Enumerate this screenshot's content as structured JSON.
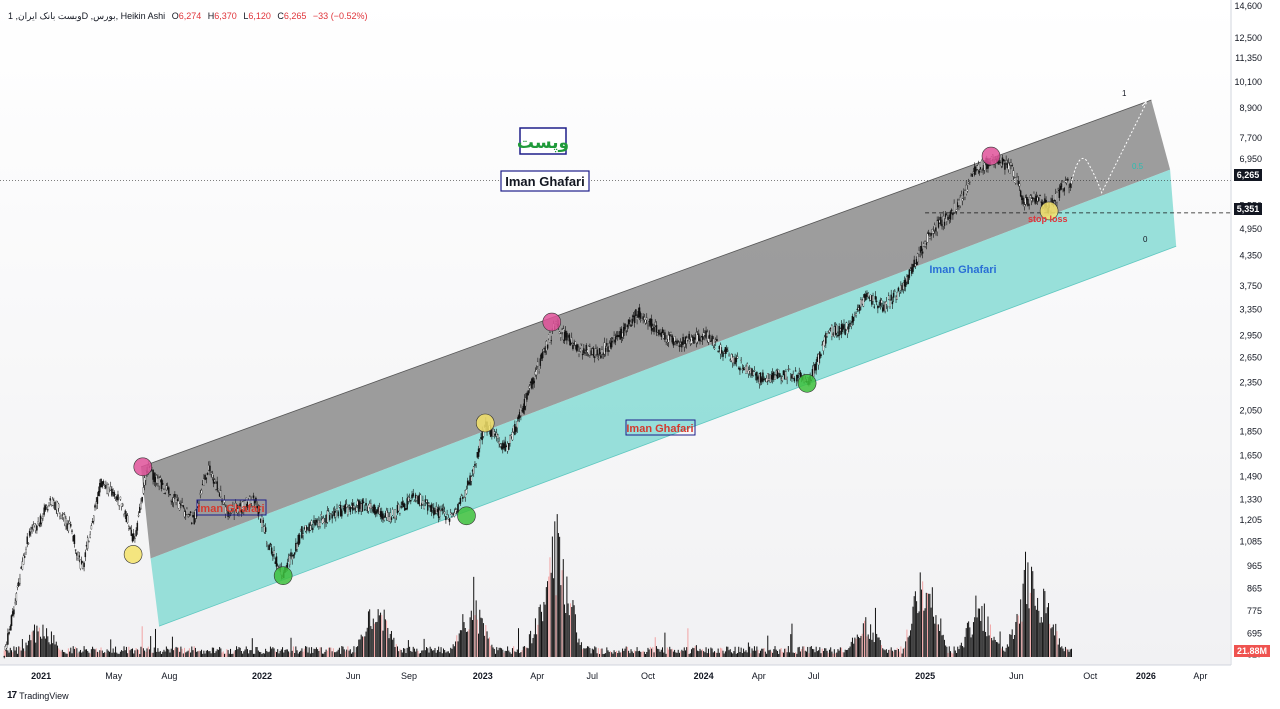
{
  "header": {
    "symbol_text": "1 ,وبست بانک ایرانD ,بورس",
    "chart_style": "Heikin Ashi",
    "open_label": "O",
    "open_value": "6,274",
    "high_label": "H",
    "high_value": "6,370",
    "low_label": "L",
    "low_value": "6,120",
    "close_label": "C",
    "close_value": "6,265",
    "change": "−33 (−0.52%)"
  },
  "branding": {
    "logo_text": "TradingView",
    "logo_mark": "17"
  },
  "colors": {
    "upper_channel": "#8c8c8c",
    "lower_channel": "#7fd9d2",
    "candles": "#111111",
    "volume": "#111111",
    "volume_alt": "#f2a4a4",
    "magenta_marker": "#e0529a",
    "yellow_marker": "#f3e26a",
    "green_marker": "#3cbf3c",
    "stop_loss": "#e0343a",
    "watermark_blue": "#2a6fd6",
    "fib_label": "#2bbdb2"
  },
  "annotations": {
    "title_persian": "وپست",
    "author_box": "Iman Ghafari",
    "author_mid": "Iman Ghafari",
    "author_blue": "Iman Ghafari",
    "author_left": "Iman Ghafari",
    "stop_loss": "stop loss",
    "fib_1": "1",
    "fib_05": "0.5",
    "fib_0": "0"
  },
  "price_axis": {
    "current_price": "6,265",
    "stop_level": "5,351",
    "volume_label": "21.88M"
  },
  "chart_data": {
    "type": "candlestick",
    "scale": "log",
    "grid": false,
    "title": "",
    "ylim": [
      620,
      14600
    ],
    "y_ticks": [
      14600,
      12500,
      11350,
      10100,
      8900,
      7700,
      6950,
      5550,
      4950,
      4350,
      3750,
      3350,
      2950,
      2650,
      2350,
      2050,
      1850,
      1650,
      1490,
      1330,
      1205,
      1085,
      965,
      865,
      775,
      695,
      627
    ],
    "y_tick_labels": [
      "14,600",
      "12,500",
      "11,350",
      "10,100",
      "8,900",
      "7,700",
      "6,950",
      "5,550",
      "4,950",
      "4,350",
      "3,750",
      "3,350",
      "2,950",
      "2,650",
      "2,350",
      "2,050",
      "1,850",
      "1,650",
      "1,490",
      "1,330",
      "1,205",
      "1,085",
      "965",
      "865",
      "775",
      "695",
      "627"
    ],
    "x_tick_labels": [
      "2021",
      "May",
      "Aug",
      "2022",
      "Jun",
      "Sep",
      "2023",
      "Apr",
      "Jul",
      "Oct",
      "2024",
      "Apr",
      "Jul",
      "2025",
      "Jun",
      "Oct",
      "2026",
      "Apr"
    ],
    "x_tick_dates": [
      "2021-01-01",
      "2021-05-01",
      "2021-08-01",
      "2022-01-01",
      "2022-06-01",
      "2022-09-01",
      "2023-01-01",
      "2023-04-01",
      "2023-07-01",
      "2023-10-01",
      "2024-01-01",
      "2024-04-01",
      "2024-07-01",
      "2025-01-01",
      "2025-06-01",
      "2025-10-01",
      "2026-01-01",
      "2026-04-01"
    ],
    "price_path": [
      {
        "date": "2020-11-01",
        "price": 620
      },
      {
        "date": "2020-12-10",
        "price": 1100
      },
      {
        "date": "2021-01-20",
        "price": 1330
      },
      {
        "date": "2021-02-20",
        "price": 1150
      },
      {
        "date": "2021-03-10",
        "price": 950
      },
      {
        "date": "2021-04-10",
        "price": 1450
      },
      {
        "date": "2021-05-15",
        "price": 1300
      },
      {
        "date": "2021-06-05",
        "price": 1080
      },
      {
        "date": "2021-06-25",
        "price": 1560
      },
      {
        "date": "2021-08-05",
        "price": 1350
      },
      {
        "date": "2021-09-10",
        "price": 1200
      },
      {
        "date": "2021-10-05",
        "price": 1560
      },
      {
        "date": "2021-11-05",
        "price": 1250
      },
      {
        "date": "2021-12-20",
        "price": 1330
      },
      {
        "date": "2022-01-15",
        "price": 1050
      },
      {
        "date": "2022-02-05",
        "price": 930
      },
      {
        "date": "2022-03-10",
        "price": 1150
      },
      {
        "date": "2022-05-01",
        "price": 1250
      },
      {
        "date": "2022-06-20",
        "price": 1300
      },
      {
        "date": "2022-08-01",
        "price": 1220
      },
      {
        "date": "2022-09-10",
        "price": 1350
      },
      {
        "date": "2022-10-20",
        "price": 1250
      },
      {
        "date": "2022-11-15",
        "price": 1220
      },
      {
        "date": "2022-12-15",
        "price": 1500
      },
      {
        "date": "2023-01-05",
        "price": 1920
      },
      {
        "date": "2023-02-10",
        "price": 1700
      },
      {
        "date": "2023-03-10",
        "price": 2100
      },
      {
        "date": "2023-04-10",
        "price": 2700
      },
      {
        "date": "2023-05-01",
        "price": 3100
      },
      {
        "date": "2023-06-01",
        "price": 2800
      },
      {
        "date": "2023-07-10",
        "price": 2700
      },
      {
        "date": "2023-08-10",
        "price": 2900
      },
      {
        "date": "2023-09-15",
        "price": 3300
      },
      {
        "date": "2023-10-20",
        "price": 3000
      },
      {
        "date": "2023-11-20",
        "price": 2850
      },
      {
        "date": "2024-01-05",
        "price": 2950
      },
      {
        "date": "2024-02-15",
        "price": 2650
      },
      {
        "date": "2024-04-01",
        "price": 2400
      },
      {
        "date": "2024-05-20",
        "price": 2450
      },
      {
        "date": "2024-06-25",
        "price": 2380
      },
      {
        "date": "2024-07-10",
        "price": 2650
      },
      {
        "date": "2024-07-25",
        "price": 3000
      },
      {
        "date": "2024-08-25",
        "price": 3050
      },
      {
        "date": "2024-09-25",
        "price": 3550
      },
      {
        "date": "2024-10-25",
        "price": 3400
      },
      {
        "date": "2024-11-25",
        "price": 3700
      },
      {
        "date": "2024-12-20",
        "price": 4300
      },
      {
        "date": "2025-01-10",
        "price": 4900
      },
      {
        "date": "2025-02-05",
        "price": 5200
      },
      {
        "date": "2025-03-01",
        "price": 5700
      },
      {
        "date": "2025-03-25",
        "price": 6600
      },
      {
        "date": "2025-05-01",
        "price": 7000
      },
      {
        "date": "2025-05-25",
        "price": 6600
      },
      {
        "date": "2025-06-15",
        "price": 5600
      },
      {
        "date": "2025-07-05",
        "price": 5800
      },
      {
        "date": "2025-07-25",
        "price": 5500
      },
      {
        "date": "2025-08-15",
        "price": 6000
      },
      {
        "date": "2025-08-31",
        "price": 6265
      }
    ],
    "channel": {
      "upper_line": [
        {
          "date": "2021-06-15",
          "price": 1560
        },
        {
          "date": "2026-01-10",
          "price": 9250
        }
      ],
      "mid_line": [
        {
          "date": "2021-07-01",
          "price": 1000
        },
        {
          "date": "2026-02-10",
          "price": 6600
        }
      ],
      "lower_line": [
        {
          "date": "2021-07-15",
          "price": 720
        },
        {
          "date": "2026-02-20",
          "price": 4550
        }
      ]
    },
    "markers": [
      {
        "date": "2021-06-18",
        "price": 1560,
        "color": "magenta"
      },
      {
        "date": "2021-06-02",
        "price": 1020,
        "color": "yellow"
      },
      {
        "date": "2022-02-05",
        "price": 920,
        "color": "green"
      },
      {
        "date": "2022-12-05",
        "price": 1230,
        "color": "green"
      },
      {
        "date": "2023-01-05",
        "price": 1930,
        "color": "yellow"
      },
      {
        "date": "2023-04-25",
        "price": 3150,
        "color": "magenta"
      },
      {
        "date": "2024-06-20",
        "price": 2340,
        "color": "green"
      },
      {
        "date": "2025-04-20",
        "price": 7050,
        "color": "magenta"
      },
      {
        "date": "2025-07-25",
        "price": 5400,
        "color": "yellow"
      }
    ],
    "stop_loss_level": 5351,
    "current_price": 6265,
    "projection": [
      {
        "date": "2025-09-01",
        "price": 6265
      },
      {
        "date": "2025-09-25",
        "price": 6900
      },
      {
        "date": "2025-10-20",
        "price": 5900
      },
      {
        "date": "2026-01-05",
        "price": 9300
      }
    ],
    "volume_peaks": [
      {
        "date": "2021-01-01",
        "value": 2.5
      },
      {
        "date": "2023-05-05",
        "value": 9.0
      },
      {
        "date": "2023-04-15",
        "value": 4.0
      },
      {
        "date": "2022-07-10",
        "value": 4.0
      },
      {
        "date": "2022-12-15",
        "value": 4.2
      },
      {
        "date": "2024-09-25",
        "value": 2.5
      },
      {
        "date": "2025-01-01",
        "value": 6.2
      },
      {
        "date": "2025-04-01",
        "value": 3.8
      },
      {
        "date": "2025-06-20",
        "value": 6.0
      },
      {
        "date": "2025-07-15",
        "value": 4.0
      }
    ],
    "volume_last": "21.88M"
  }
}
